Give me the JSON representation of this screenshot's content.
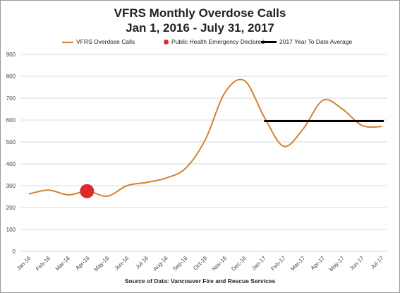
{
  "chart_data": {
    "type": "line",
    "title": "VFRS Monthly Overdose Calls",
    "subtitle": "Jan 1, 2016 - July 31, 2017",
    "source": "Source of Data: Vancouver Fire and Rescue Services",
    "categories": [
      "Jan-16",
      "Feb-16",
      "Mar-16",
      "Apr-16",
      "May-16",
      "Jun-16",
      "Jul-16",
      "Aug-16",
      "Sep-16",
      "Oct-16",
      "Nov-16",
      "Dec-16",
      "Jan-17",
      "Feb-17",
      "Mar-17",
      "Apr-17",
      "May-17",
      "Jun-17",
      "Jul-17"
    ],
    "ylim": [
      0,
      900
    ],
    "yticks": [
      "0",
      "100",
      "200",
      "300",
      "400",
      "500",
      "600",
      "700",
      "800",
      "900"
    ],
    "grid": true,
    "legend_position": "top",
    "series": [
      {
        "name": "VFRS Overdose Calls",
        "color": "#d2832f",
        "values": [
          262,
          280,
          258,
          275,
          252,
          300,
          315,
          335,
          380,
          510,
          725,
          780,
          615,
          480,
          560,
          690,
          650,
          575,
          570
        ]
      }
    ],
    "markers": [
      {
        "name": "Public Health Emergency Declared",
        "color": "#dc2b2b",
        "category": "Apr-16",
        "value": 275
      }
    ],
    "reference_lines": [
      {
        "name": "2017 Year To Date Average",
        "color": "#000000",
        "value": 595,
        "from": "Jan-17",
        "to": "Jul-17"
      }
    ]
  }
}
